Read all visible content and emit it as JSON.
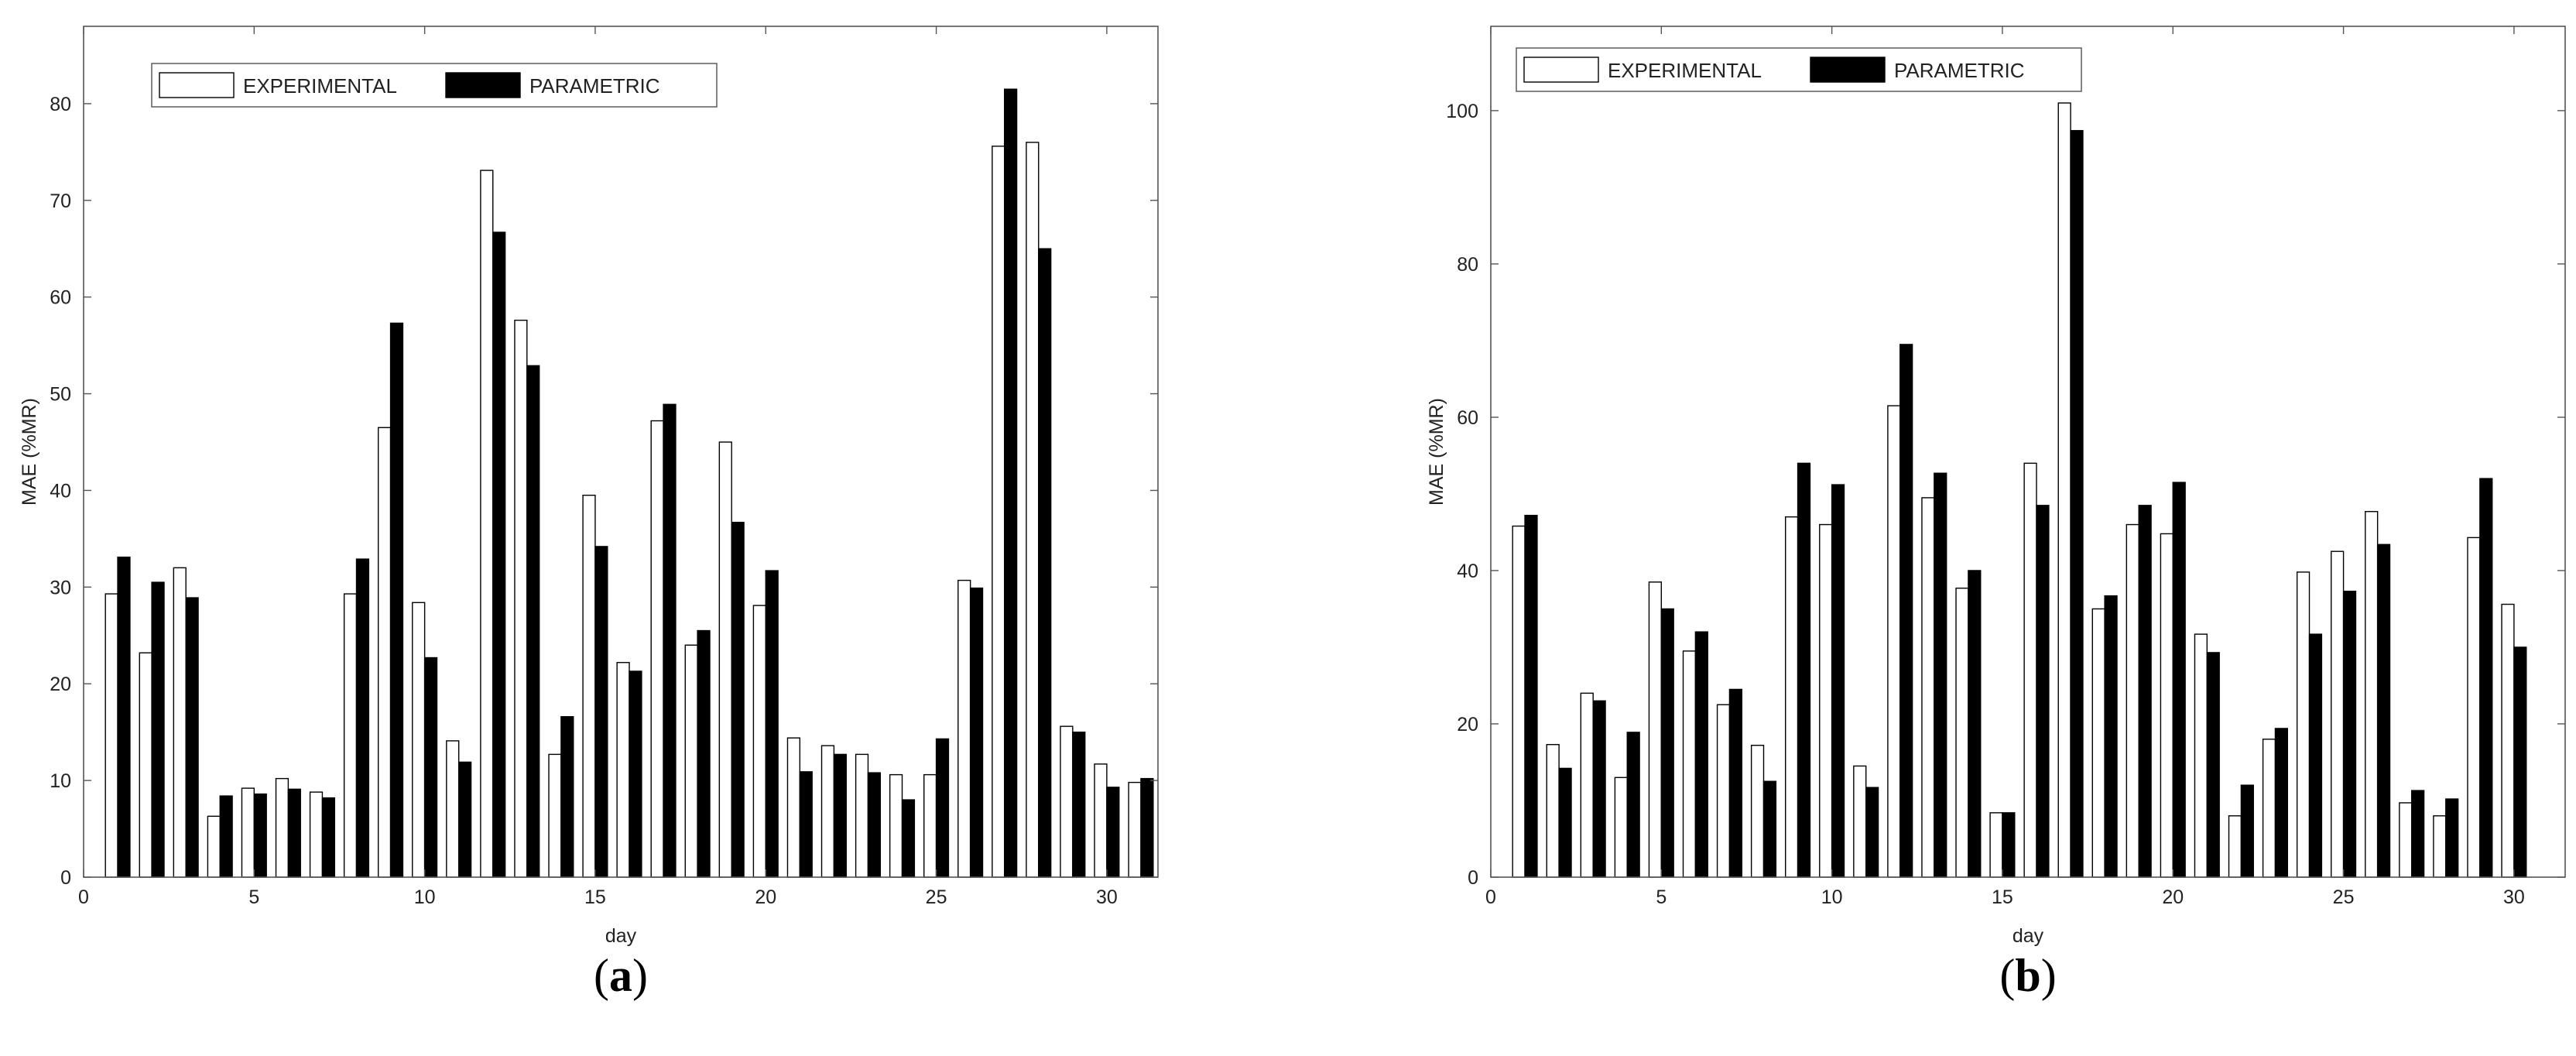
{
  "chart_data": [
    {
      "type": "bar",
      "caption_open": "(",
      "caption_letter": "a",
      "caption_close": ")",
      "xlabel": "day",
      "ylabel": "MAE (%MR)",
      "xlim": [
        0,
        31.5
      ],
      "ylim": [
        0,
        88
      ],
      "xticks": [
        0,
        5,
        10,
        15,
        20,
        25,
        30
      ],
      "yticks": [
        0,
        10,
        20,
        30,
        40,
        50,
        60,
        70,
        80
      ],
      "legend_position": "top-left",
      "grid": false,
      "x": [
        1,
        2,
        3,
        4,
        5,
        6,
        7,
        8,
        9,
        10,
        11,
        12,
        13,
        14,
        15,
        16,
        17,
        18,
        19,
        20,
        21,
        22,
        23,
        24,
        25,
        26,
        27,
        28,
        29,
        30,
        31
      ],
      "series": [
        {
          "name": "EXPERIMENTAL",
          "color": "#ffffff",
          "values": [
            29.3,
            23.2,
            32,
            6.3,
            9.2,
            10.2,
            8.8,
            29.3,
            46.5,
            28.4,
            14.1,
            73.1,
            57.6,
            12.7,
            39.5,
            22.2,
            47.2,
            24,
            45,
            28.1,
            14.4,
            13.6,
            12.7,
            10.6,
            10.6,
            30.7,
            75.6,
            76,
            15.6,
            11.7,
            9.8
          ]
        },
        {
          "name": "PARAMETRIC",
          "color": "#000000",
          "values": [
            33.1,
            30.5,
            28.9,
            8.4,
            8.6,
            9.1,
            8.2,
            32.9,
            57.3,
            22.7,
            11.9,
            66.7,
            52.9,
            16.6,
            34.2,
            21.3,
            48.9,
            25.5,
            36.7,
            31.7,
            10.9,
            12.7,
            10.8,
            8,
            14.3,
            29.9,
            81.5,
            65,
            15,
            9.3,
            10.2
          ]
        }
      ]
    },
    {
      "type": "bar",
      "caption_open": "(",
      "caption_letter": "b",
      "caption_close": ")",
      "xlabel": "day",
      "ylabel": "MAE (%MR)",
      "xlim": [
        0,
        31.5
      ],
      "ylim": [
        0,
        111
      ],
      "xticks": [
        0,
        5,
        10,
        15,
        20,
        25,
        30
      ],
      "yticks": [
        0,
        20,
        40,
        60,
        80,
        100
      ],
      "legend_position": "top-left",
      "grid": false,
      "x": [
        1,
        2,
        3,
        4,
        5,
        6,
        7,
        8,
        9,
        10,
        11,
        12,
        13,
        14,
        15,
        16,
        17,
        18,
        19,
        20,
        21,
        22,
        23,
        24,
        25,
        26,
        27,
        28,
        29,
        30
      ],
      "series": [
        {
          "name": "EXPERIMENTAL",
          "color": "#ffffff",
          "values": [
            45.8,
            17.3,
            24,
            13,
            38.5,
            29.5,
            22.5,
            17.2,
            47,
            46,
            14.5,
            61.5,
            49.5,
            37.7,
            8.4,
            54,
            101,
            35,
            46,
            44.8,
            31.7,
            8,
            18,
            39.8,
            42.5,
            47.7,
            9.7,
            8,
            44.3,
            35.6
          ]
        },
        {
          "name": "PARAMETRIC",
          "color": "#000000",
          "values": [
            47.2,
            14.2,
            23,
            18.9,
            35,
            32,
            24.5,
            12.5,
            54,
            51.2,
            11.7,
            69.5,
            52.7,
            40,
            8.4,
            48.5,
            97.4,
            36.7,
            48.5,
            51.5,
            29.3,
            12,
            19.4,
            31.7,
            37.3,
            43.4,
            11.3,
            10.2,
            52,
            30
          ]
        }
      ]
    }
  ]
}
